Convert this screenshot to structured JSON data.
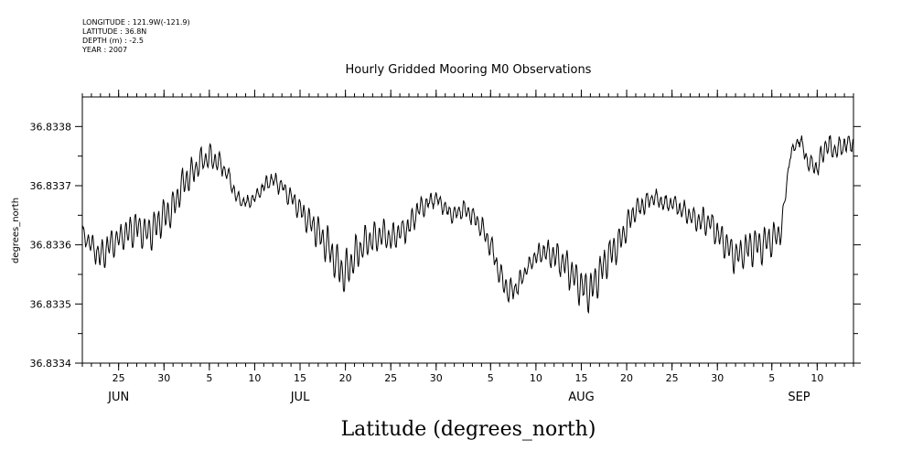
{
  "header_info": {
    "longitude": "LONGITUDE : 121.9W(-121.9)",
    "latitude": "LATITUDE : 36.8N",
    "depth": "DEPTH (m) : -2.5",
    "year": "YEAR : 2007"
  },
  "chart_data": {
    "type": "line",
    "title": "Hourly Gridded Mooring M0 Observations",
    "xlabel": "Latitude (degrees_north)",
    "ylabel": "degrees_north",
    "x_range": [
      "2007-06-21",
      "2007-09-14"
    ],
    "ylim": [
      36.8334,
      36.83385
    ],
    "y_ticks": [
      {
        "value": 36.8334,
        "label": "36.8334"
      },
      {
        "value": 36.8335,
        "label": "36.8335"
      },
      {
        "value": 36.8336,
        "label": "36.8336"
      },
      {
        "value": 36.8337,
        "label": "36.8337"
      },
      {
        "value": 36.8338,
        "label": "36.8338"
      }
    ],
    "x_tick_labels": [
      {
        "date": "2007-06-25",
        "label": "25"
      },
      {
        "date": "2007-06-30",
        "label": "30"
      },
      {
        "date": "2007-07-05",
        "label": "5"
      },
      {
        "date": "2007-07-10",
        "label": "10"
      },
      {
        "date": "2007-07-15",
        "label": "15"
      },
      {
        "date": "2007-07-20",
        "label": "20"
      },
      {
        "date": "2007-07-25",
        "label": "25"
      },
      {
        "date": "2007-07-30",
        "label": "30"
      },
      {
        "date": "2007-08-05",
        "label": "5"
      },
      {
        "date": "2007-08-10",
        "label": "10"
      },
      {
        "date": "2007-08-15",
        "label": "15"
      },
      {
        "date": "2007-08-20",
        "label": "20"
      },
      {
        "date": "2007-08-25",
        "label": "25"
      },
      {
        "date": "2007-08-30",
        "label": "30"
      },
      {
        "date": "2007-09-05",
        "label": "5"
      },
      {
        "date": "2007-09-10",
        "label": "10"
      }
    ],
    "month_labels": [
      {
        "date": "2007-06-25",
        "label": "JUN"
      },
      {
        "date": "2007-07-15",
        "label": "JUL"
      },
      {
        "date": "2007-08-15",
        "label": "AUG"
      },
      {
        "date": "2007-09-08",
        "label": "SEP"
      }
    ],
    "series": [
      {
        "x": [
          "2007-06-21",
          "2007-06-22",
          "2007-06-23",
          "2007-06-24",
          "2007-06-25",
          "2007-06-26",
          "2007-06-27",
          "2007-06-28",
          "2007-06-29",
          "2007-06-30",
          "2007-07-01",
          "2007-07-02",
          "2007-07-03",
          "2007-07-04",
          "2007-07-05",
          "2007-07-06",
          "2007-07-07",
          "2007-07-08",
          "2007-07-09",
          "2007-07-10",
          "2007-07-11",
          "2007-07-12",
          "2007-07-13",
          "2007-07-14",
          "2007-07-15",
          "2007-07-16",
          "2007-07-17",
          "2007-07-18",
          "2007-07-19",
          "2007-07-20",
          "2007-07-21",
          "2007-07-22",
          "2007-07-23",
          "2007-07-24",
          "2007-07-25",
          "2007-07-26",
          "2007-07-27",
          "2007-07-28",
          "2007-07-29",
          "2007-07-30",
          "2007-07-31",
          "2007-08-01",
          "2007-08-02",
          "2007-08-03",
          "2007-08-04",
          "2007-08-05",
          "2007-08-06",
          "2007-08-07",
          "2007-08-08",
          "2007-08-09",
          "2007-08-10",
          "2007-08-11",
          "2007-08-12",
          "2007-08-13",
          "2007-08-14",
          "2007-08-15",
          "2007-08-16",
          "2007-08-17",
          "2007-08-18",
          "2007-08-19",
          "2007-08-20",
          "2007-08-21",
          "2007-08-22",
          "2007-08-23",
          "2007-08-24",
          "2007-08-25",
          "2007-08-26",
          "2007-08-27",
          "2007-08-28",
          "2007-08-29",
          "2007-08-30",
          "2007-08-31",
          "2007-09-01",
          "2007-09-02",
          "2007-09-03",
          "2007-09-04",
          "2007-09-05",
          "2007-09-06",
          "2007-09-07",
          "2007-09-08",
          "2007-09-09",
          "2007-09-10",
          "2007-09-11",
          "2007-09-12",
          "2007-09-13",
          "2007-09-14"
        ],
        "mean": [
          36.83362,
          36.8336,
          36.83358,
          36.8336,
          36.83361,
          36.83362,
          36.83363,
          36.83362,
          36.83363,
          36.83365,
          36.83366,
          36.8337,
          36.83372,
          36.83374,
          36.83375,
          36.83374,
          36.83372,
          36.83368,
          36.83367,
          36.83368,
          36.8337,
          36.83371,
          36.8337,
          36.83368,
          36.83366,
          36.83364,
          36.83362,
          36.8336,
          36.83357,
          36.83355,
          36.83358,
          36.8336,
          36.83361,
          36.83362,
          36.83361,
          36.83362,
          36.83363,
          36.83366,
          36.83367,
          36.83368,
          36.83366,
          36.83365,
          36.83366,
          36.83365,
          36.83363,
          36.8336,
          36.83355,
          36.83352,
          36.83353,
          36.83356,
          36.83358,
          36.83359,
          36.83358,
          36.83357,
          36.83355,
          36.83353,
          36.83352,
          36.83355,
          36.83358,
          36.8336,
          36.83363,
          36.83366,
          36.83367,
          36.83368,
          36.83367,
          36.83367,
          36.83366,
          36.83365,
          36.83364,
          36.83364,
          36.83362,
          36.8336,
          36.83358,
          36.83359,
          36.8336,
          36.8336,
          36.83361,
          36.83362,
          36.83375,
          36.83378,
          36.83374,
          36.83373,
          36.83377,
          36.83376,
          36.83377,
          36.83377
        ],
        "amplitude": [
          1.5e-05,
          2e-05,
          2.8e-05,
          3e-05,
          2.5e-05,
          3e-05,
          3.2e-05,
          3.5e-05,
          3.6e-05,
          3.4e-05,
          3.2e-05,
          3e-05,
          2.8e-05,
          2.4e-05,
          2.2e-05,
          2e-05,
          1.8e-05,
          1.2e-05,
          1e-05,
          1e-05,
          1.2e-05,
          1.4e-05,
          1.6e-05,
          1.8e-05,
          2.2e-05,
          2.6e-05,
          3e-05,
          3.4e-05,
          3.8e-05,
          4e-05,
          3.6e-05,
          3.2e-05,
          3e-05,
          2.8e-05,
          2.6e-05,
          2.4e-05,
          2.2e-05,
          2e-05,
          1.6e-05,
          1.2e-05,
          1.2e-05,
          1.4e-05,
          1.6e-05,
          1.8e-05,
          2e-05,
          2.2e-05,
          2.4e-05,
          2.2e-05,
          1.8e-05,
          1.4e-05,
          1.6e-05,
          2e-05,
          2.6e-05,
          3e-05,
          3.4e-05,
          3.8e-05,
          4e-05,
          3.6e-05,
          3.2e-05,
          3e-05,
          2.6e-05,
          2.2e-05,
          1.8e-05,
          1.6e-05,
          1.4e-05,
          1.4e-05,
          1.6e-05,
          2e-05,
          2.2e-05,
          2.4e-05,
          2.6e-05,
          2.8e-05,
          3e-05,
          3.2e-05,
          3.4e-05,
          3.6e-05,
          3.2e-05,
          2e-05,
          1e-05,
          1.2e-05,
          1.6e-05,
          1.8e-05,
          2e-05,
          1.8e-05,
          1.6e-05,
          1.5e-05
        ]
      }
    ]
  }
}
